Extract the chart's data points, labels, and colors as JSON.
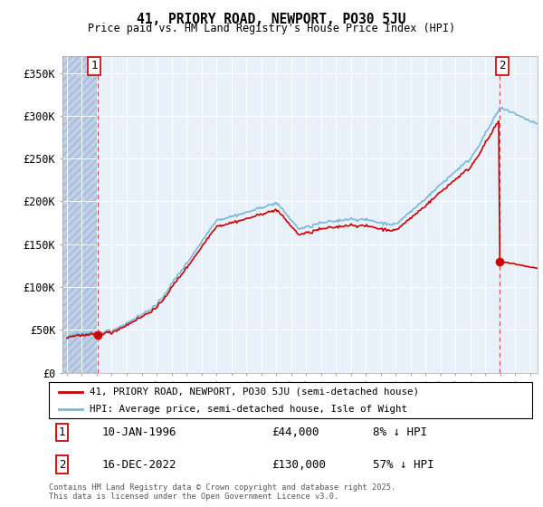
{
  "title": "41, PRIORY ROAD, NEWPORT, PO30 5JU",
  "subtitle": "Price paid vs. HM Land Registry's House Price Index (HPI)",
  "ylim": [
    0,
    370000
  ],
  "yticks": [
    0,
    50000,
    100000,
    150000,
    200000,
    250000,
    300000,
    350000
  ],
  "ytick_labels": [
    "£0",
    "£50K",
    "£100K",
    "£150K",
    "£200K",
    "£250K",
    "£300K",
    "£350K"
  ],
  "xlim_start": 1993.7,
  "xlim_end": 2025.5,
  "hpi_color": "#7ab8d9",
  "price_color": "#cc0000",
  "sale1_year": 1996.04,
  "sale1_price": 44000,
  "sale2_year": 2022.96,
  "sale2_price": 130000,
  "legend_label1": "41, PRIORY ROAD, NEWPORT, PO30 5JU (semi-detached house)",
  "legend_label2": "HPI: Average price, semi-detached house, Isle of Wight",
  "note1_num": "1",
  "note1_date": "10-JAN-1996",
  "note1_price": "£44,000",
  "note1_hpi": "8% ↓ HPI",
  "note2_num": "2",
  "note2_date": "16-DEC-2022",
  "note2_price": "£130,000",
  "note2_hpi": "57% ↓ HPI",
  "footer": "Contains HM Land Registry data © Crown copyright and database right 2025.\nThis data is licensed under the Open Government Licence v3.0.",
  "background_color": "#dce9f5",
  "plot_bg_color": "#e8f0fa",
  "hatch_color": "#c0cfe8"
}
